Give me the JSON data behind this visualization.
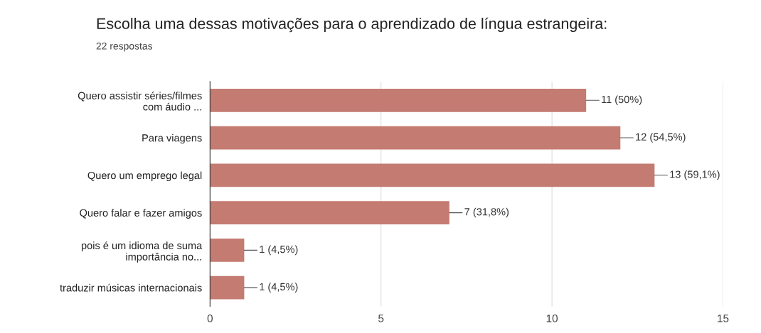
{
  "chart_data": {
    "type": "bar",
    "orientation": "horizontal",
    "title": "Escolha uma dessas motivações para o aprendizado de língua estrangeira:",
    "subtitle": "22 respostas",
    "categories": [
      "Quero assistir séries/filmes\ncom áudio ...",
      "Para viagens",
      "Quero um emprego legal",
      "Quero falar e fazer amigos",
      "pois é um idioma de suma\nimportância no...",
      "traduzir músicas internacionais"
    ],
    "values": [
      11,
      12,
      13,
      7,
      1,
      1
    ],
    "value_labels": [
      "11 (50%)",
      "12 (54,5%)",
      "13 (59,1%)",
      "7 (31,8%)",
      "1 (4,5%)",
      "1 (4,5%)"
    ],
    "color": "#c47b72",
    "xlim": [
      0,
      15
    ],
    "xticks": [
      0,
      5,
      10,
      15
    ],
    "grid": "x"
  }
}
